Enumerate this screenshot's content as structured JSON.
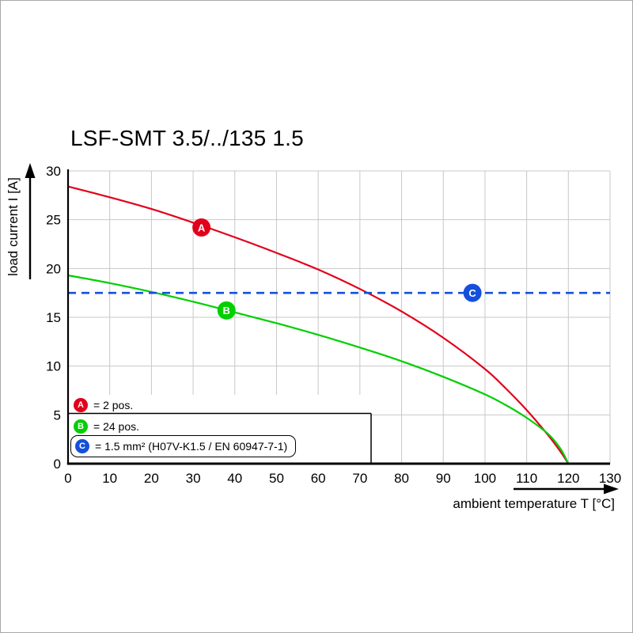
{
  "chart_data": {
    "type": "line",
    "title": "LSF-SMT 3.5/../135 1.5",
    "xlabel": "ambient temperature T [°C]",
    "ylabel": "load current I [A]",
    "xlim": [
      0,
      130
    ],
    "ylim": [
      0,
      30
    ],
    "xticks": [
      0,
      10,
      20,
      30,
      40,
      50,
      60,
      70,
      80,
      90,
      100,
      110,
      120,
      130
    ],
    "yticks": [
      0,
      5,
      10,
      15,
      20,
      25,
      30
    ],
    "grid": true,
    "grid_color": "#c8c8c8",
    "axis_color": "#000000",
    "series": [
      {
        "name": "A",
        "label": "= 2 pos.",
        "color": "#e2001a",
        "style": "solid",
        "points": [
          [
            0,
            28.4
          ],
          [
            10,
            27.3
          ],
          [
            20,
            26.1
          ],
          [
            30,
            24.7
          ],
          [
            40,
            23.2
          ],
          [
            50,
            21.6
          ],
          [
            60,
            19.9
          ],
          [
            70,
            17.9
          ],
          [
            80,
            15.6
          ],
          [
            90,
            12.9
          ],
          [
            100,
            9.7
          ],
          [
            105,
            7.7
          ],
          [
            110,
            5.5
          ],
          [
            115,
            3.0
          ],
          [
            118,
            1.3
          ],
          [
            120,
            0
          ]
        ],
        "marker": {
          "x": 32,
          "y": 24.2
        }
      },
      {
        "name": "B",
        "label": "= 24 pos.",
        "color": "#00cf00",
        "style": "solid",
        "points": [
          [
            0,
            19.3
          ],
          [
            10,
            18.5
          ],
          [
            20,
            17.6
          ],
          [
            30,
            16.6
          ],
          [
            40,
            15.5
          ],
          [
            50,
            14.4
          ],
          [
            60,
            13.2
          ],
          [
            70,
            11.9
          ],
          [
            80,
            10.5
          ],
          [
            90,
            8.9
          ],
          [
            100,
            7.1
          ],
          [
            105,
            6.0
          ],
          [
            110,
            4.7
          ],
          [
            115,
            3.1
          ],
          [
            118,
            1.6
          ],
          [
            120,
            0
          ]
        ],
        "marker": {
          "x": 38,
          "y": 15.7
        }
      },
      {
        "name": "C",
        "label": "= 1.5 mm² (H07V-K1.5 / EN 60947-7-1)",
        "color": "#1450db",
        "style": "dashed",
        "points": [
          [
            0,
            17.5
          ],
          [
            130,
            17.5
          ]
        ],
        "marker": {
          "x": 97,
          "y": 17.5
        }
      }
    ]
  }
}
